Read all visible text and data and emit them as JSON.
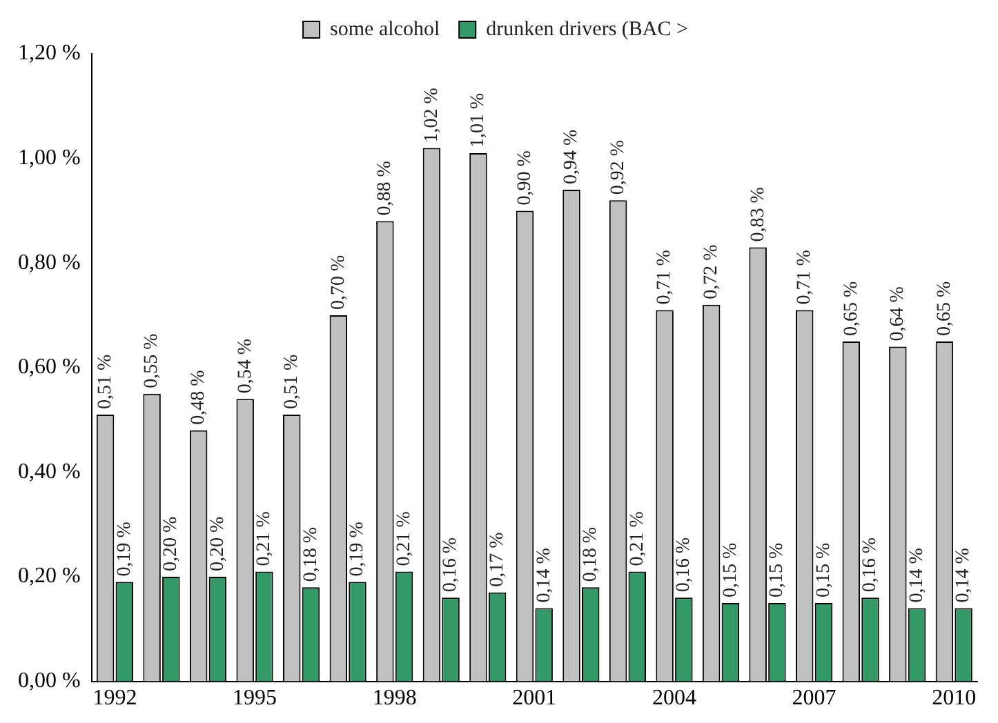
{
  "chart_data": {
    "type": "bar",
    "categories": [
      "1992",
      null,
      null,
      "1995",
      null,
      null,
      "1998",
      null,
      null,
      "2001",
      null,
      null,
      "2004",
      null,
      null,
      "2007",
      null,
      null,
      "2010"
    ],
    "series": [
      {
        "name": "some alcohol",
        "color": "#c0c0c0",
        "values": [
          0.51,
          0.55,
          0.48,
          0.54,
          0.51,
          0.7,
          0.88,
          1.02,
          1.01,
          0.9,
          0.94,
          0.92,
          0.71,
          0.72,
          0.83,
          0.71,
          0.65,
          0.64,
          0.65
        ],
        "value_labels": [
          "0,51 %",
          "0,55 %",
          "0,48 %",
          "0,54 %",
          "0,51 %",
          "0,70 %",
          "0,88 %",
          "1,02 %",
          "1,01 %",
          "0,90 %",
          "0,94 %",
          "0,92 %",
          "0,71 %",
          "0,72 %",
          "0,83 %",
          "0,71 %",
          "0,65 %",
          "0,64 %",
          "0,65 %"
        ]
      },
      {
        "name": "drunken drivers (BAC >",
        "color": "#339966",
        "values": [
          0.19,
          0.2,
          0.2,
          0.21,
          0.18,
          0.19,
          0.21,
          0.16,
          0.17,
          0.14,
          0.18,
          0.21,
          0.16,
          0.15,
          0.15,
          0.15,
          0.16,
          0.14,
          0.14
        ],
        "value_labels": [
          "0,19 %",
          "0,20 %",
          "0,20 %",
          "0,21 %",
          "0,18 %",
          "0,19 %",
          "0,21 %",
          "0,16 %",
          "0,17 %",
          "0,14 %",
          "0,18 %",
          "0,21 %",
          "0,16 %",
          "0,15 %",
          "0,15 %",
          "0,15 %",
          "0,16 %",
          "0,14 %",
          "0,14 %"
        ]
      }
    ],
    "ylim": [
      0,
      1.2
    ],
    "yticks": [
      {
        "value": 0,
        "label": "0,00 %"
      },
      {
        "value": 0.2,
        "label": "0,20 %"
      },
      {
        "value": 0.4,
        "label": "0,40 %"
      },
      {
        "value": 0.6,
        "label": "0,60 %"
      },
      {
        "value": 0.8,
        "label": "0,80 %"
      },
      {
        "value": 1.0,
        "label": "1,00 %"
      },
      {
        "value": 1.2,
        "label": "1,20 %"
      }
    ],
    "grid": false,
    "legend": "top"
  }
}
